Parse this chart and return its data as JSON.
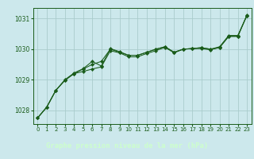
{
  "title": "Graphe pression niveau de la mer (hPa)",
  "bg_color": "#cce8ec",
  "plot_bg_color": "#cce8ec",
  "footer_bg_color": "#2d6b2d",
  "footer_text_color": "#ccffcc",
  "line_color": "#1a5c1a",
  "marker_color": "#1a5c1a",
  "grid_color": "#aacccc",
  "xlim": [
    -0.5,
    23.5
  ],
  "ylim": [
    1027.55,
    1031.35
  ],
  "yticks": [
    1028,
    1029,
    1030,
    1031
  ],
  "xticks": [
    0,
    1,
    2,
    3,
    4,
    5,
    6,
    7,
    8,
    9,
    10,
    11,
    12,
    13,
    14,
    15,
    16,
    17,
    18,
    19,
    20,
    21,
    22,
    23
  ],
  "line1_x": [
    0,
    1,
    2,
    3,
    4,
    5,
    6,
    7,
    8,
    9,
    10,
    11,
    12,
    13,
    14,
    15,
    16,
    17,
    18,
    19,
    20,
    21,
    22,
    23
  ],
  "line1_y": [
    1027.75,
    1028.1,
    1028.65,
    1028.98,
    1029.2,
    1029.27,
    1029.35,
    1029.42,
    1029.95,
    1029.88,
    1029.75,
    1029.75,
    1029.86,
    1029.95,
    1030.06,
    1029.88,
    1030.0,
    1030.02,
    1030.02,
    1029.98,
    1030.06,
    1030.42,
    1030.42,
    1031.12
  ],
  "line2_x": [
    0,
    1,
    2,
    3,
    4,
    5,
    6,
    7,
    8,
    9,
    10,
    11,
    12,
    13,
    14,
    15,
    16,
    17,
    18,
    19,
    20,
    21,
    22,
    23
  ],
  "line2_y": [
    1027.75,
    1028.1,
    1028.65,
    1028.98,
    1029.2,
    1029.35,
    1029.5,
    1029.6,
    1030.0,
    1029.9,
    1029.8,
    1029.8,
    1029.9,
    1030.0,
    1030.08,
    1029.9,
    1030.0,
    1030.02,
    1030.05,
    1030.0,
    1030.08,
    1030.45,
    1030.45,
    1031.1
  ],
  "line3_x": [
    0,
    1,
    2,
    3,
    4,
    5,
    6,
    7,
    8,
    9,
    10,
    11,
    12,
    13,
    14,
    15,
    16,
    17,
    18,
    19,
    20,
    21,
    22,
    23
  ],
  "line3_y": [
    1027.75,
    1028.1,
    1028.65,
    1029.0,
    1029.22,
    1029.36,
    1029.6,
    1029.45,
    1030.02,
    1029.92,
    1029.8,
    1029.8,
    1029.9,
    1030.0,
    1030.08,
    1029.9,
    1030.0,
    1030.02,
    1030.05,
    1030.0,
    1030.05,
    1030.42,
    1030.42,
    1031.1
  ],
  "ylabel_fontsize": 6,
  "xlabel_fontsize": 6,
  "tick_labelsize": 5
}
